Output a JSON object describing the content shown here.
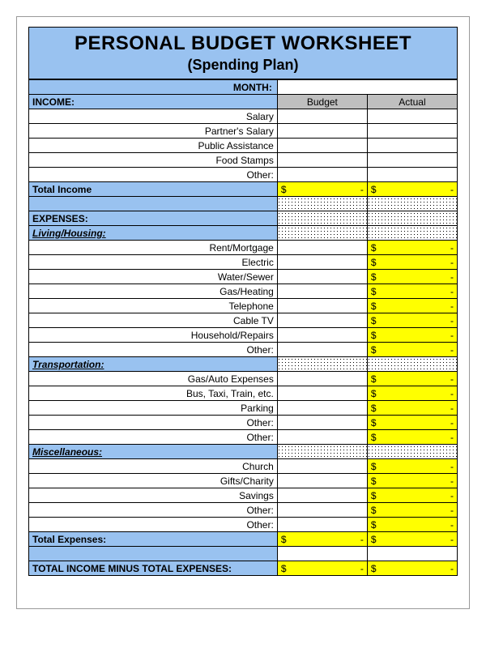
{
  "title": "PERSONAL BUDGET WORKSHEET",
  "subtitle": "(Spending Plan)",
  "month_label": "MONTH:",
  "columns": {
    "budget": "Budget",
    "actual": "Actual"
  },
  "colors": {
    "header_blue": "#99c2f0",
    "header_gray": "#bfbfbf",
    "highlight_yellow": "#ffff00"
  },
  "currency_symbol": "$",
  "empty_value": "-",
  "sections": {
    "income": {
      "header": "INCOME:",
      "items": [
        "Salary",
        "Partner's Salary",
        "Public Assistance",
        "Food Stamps",
        "Other:"
      ],
      "total_label": "Total Income"
    },
    "expenses_header": "EXPENSES:",
    "living": {
      "header": "Living/Housing:",
      "items": [
        "Rent/Mortgage",
        "Electric",
        "Water/Sewer",
        "Gas/Heating",
        "Telephone",
        "Cable TV",
        "Household/Repairs",
        "Other:"
      ]
    },
    "transportation": {
      "header": "Transportation:",
      "items": [
        "Gas/Auto Expenses",
        "Bus, Taxi, Train, etc.",
        "Parking",
        "Other:",
        "Other:"
      ]
    },
    "miscellaneous": {
      "header": "Miscellaneous:",
      "items": [
        "Church",
        "Gifts/Charity",
        "Savings",
        "Other:",
        "Other:"
      ]
    },
    "total_expenses_label": "Total Expenses:",
    "net_label": "TOTAL INCOME MINUS TOTAL EXPENSES:"
  }
}
